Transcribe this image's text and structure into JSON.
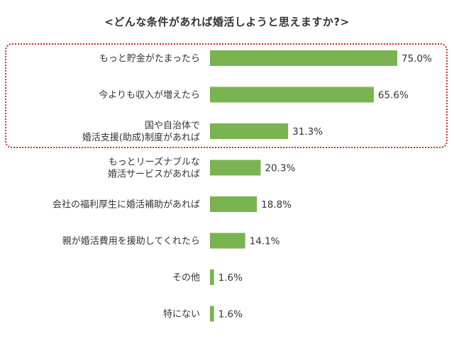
{
  "chart_data": {
    "type": "bar",
    "orientation": "horizontal",
    "title": "<どんな条件があれば婚活しようと思えますか?>",
    "categories": [
      [
        "もっと貯金がたまったら"
      ],
      [
        "今よりも収入が増えたら"
      ],
      [
        "国や自治体で",
        "婚活支援(助成)制度があれば"
      ],
      [
        "もっとリーズナブルな",
        "婚活サービスがあれば"
      ],
      [
        "会社の福利厚生に婚活補助があれば"
      ],
      [
        "親が婚活費用を援助してくれたら"
      ],
      [
        "その他"
      ],
      [
        "特にない"
      ]
    ],
    "values": [
      75.0,
      65.6,
      31.3,
      20.3,
      18.8,
      14.1,
      1.6,
      1.6
    ],
    "value_labels": [
      "75.0%",
      "65.6%",
      "31.3%",
      "20.3%",
      "18.8%",
      "14.1%",
      "1.6%",
      "1.6%"
    ],
    "xlim": [
      0,
      100
    ],
    "grid": false,
    "legend": "none",
    "highlighted_items": [
      0,
      1,
      2
    ],
    "colors": {
      "bar": "#7ab351",
      "highlight_border": "#d42a32",
      "text": "#333333"
    }
  }
}
